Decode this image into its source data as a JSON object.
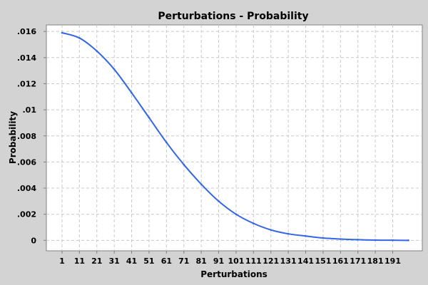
{
  "chart_data": {
    "type": "line",
    "title": "Perturbations - Probability",
    "xlabel": "Perturbations",
    "ylabel": "Probability",
    "xlim": [
      -8,
      208
    ],
    "ylim": [
      -0.0008,
      0.0165
    ],
    "x_ticks": [
      1,
      11,
      21,
      31,
      41,
      51,
      61,
      71,
      81,
      91,
      101,
      111,
      121,
      131,
      141,
      151,
      161,
      171,
      181,
      191
    ],
    "y_ticks": [
      {
        "value": 0,
        "label": "0"
      },
      {
        "value": 0.002,
        "label": ".002"
      },
      {
        "value": 0.004,
        "label": ".004"
      },
      {
        "value": 0.006,
        "label": ".006"
      },
      {
        "value": 0.008,
        "label": ".008"
      },
      {
        "value": 0.01,
        "label": ".01"
      },
      {
        "value": 0.012,
        "label": ".012"
      },
      {
        "value": 0.014,
        "label": ".014"
      },
      {
        "value": 0.016,
        "label": ".016"
      }
    ],
    "grid": true,
    "line_color": "#3366e6",
    "plot_background": "#ffffff",
    "page_background": "#d3d3d3",
    "grid_color": "#c8c8c8",
    "series": [
      {
        "x": [
          1,
          11,
          21,
          31,
          41,
          51,
          61,
          71,
          81,
          91,
          101,
          111,
          121,
          131,
          141,
          151,
          161,
          171,
          181,
          191,
          200
        ],
        "values": [
          0.0159,
          0.0155,
          0.0145,
          0.0131,
          0.0113,
          0.0094,
          0.0075,
          0.0058,
          0.0043,
          0.003,
          0.002,
          0.0013,
          0.0008,
          0.0005,
          0.00033,
          0.00018,
          0.0001,
          5e-05,
          2e-05,
          1e-05,
          0.0
        ]
      }
    ]
  }
}
